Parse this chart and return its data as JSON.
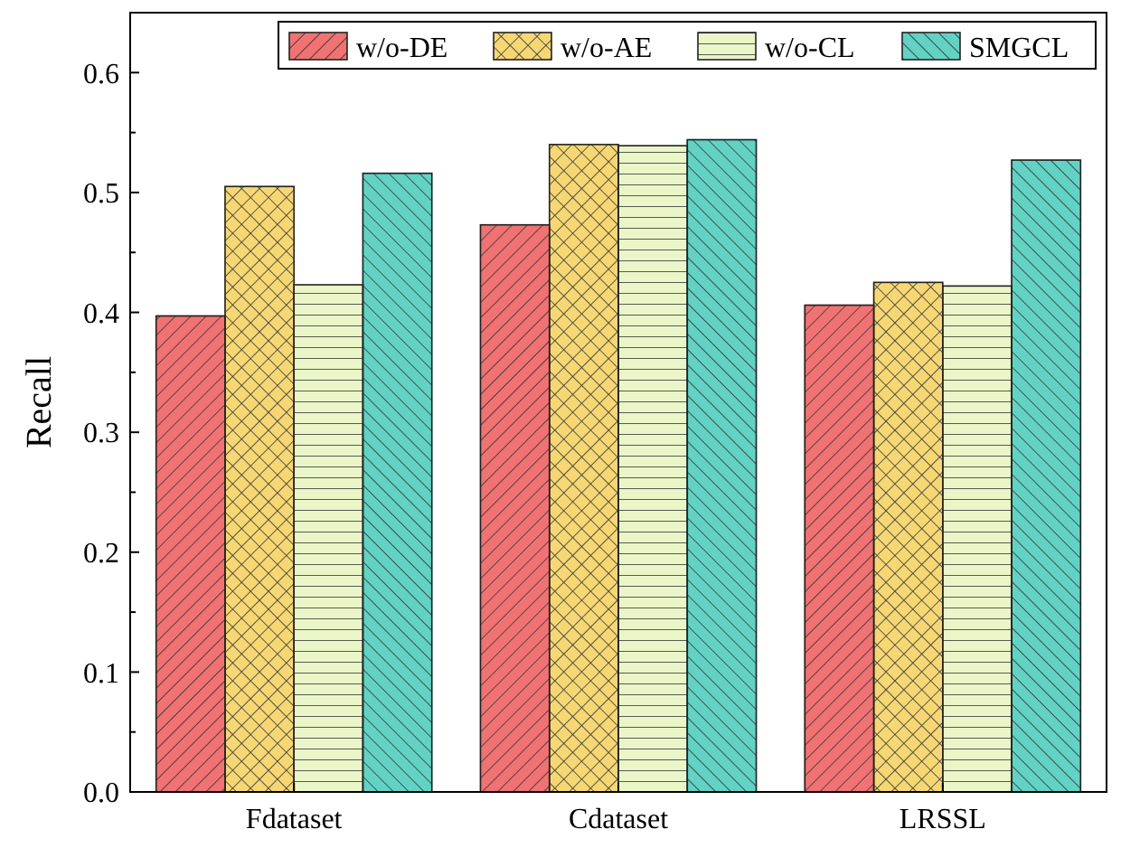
{
  "chart_data": {
    "type": "bar",
    "ylabel": "Recall",
    "categories": [
      "Fdataset",
      "Cdataset",
      "LRSSL"
    ],
    "series": [
      {
        "name": "w/o-DE",
        "color": "#f07272",
        "values": [
          0.397,
          0.473,
          0.406
        ]
      },
      {
        "name": "w/o-AE",
        "color": "#f6d774",
        "values": [
          0.505,
          0.54,
          0.425
        ]
      },
      {
        "name": "w/o-CL",
        "color": "#eaf6c8",
        "values": [
          0.423,
          0.539,
          0.422
        ]
      },
      {
        "name": "SMGCL",
        "color": "#62d2c4",
        "values": [
          0.516,
          0.544,
          0.527
        ]
      }
    ],
    "ylim": [
      0,
      0.65
    ],
    "yticks": [
      {
        "value": 0,
        "label": "0.0"
      },
      {
        "value": 0.1,
        "label": "0.1"
      },
      {
        "value": 0.2,
        "label": "0.2"
      },
      {
        "value": 0.3,
        "label": "0.3"
      },
      {
        "value": 0.4,
        "label": "0.4"
      },
      {
        "value": 0.5,
        "label": "0.5"
      },
      {
        "value": 0.6,
        "label": "0.6"
      }
    ],
    "grid": false,
    "legend": "top right"
  }
}
